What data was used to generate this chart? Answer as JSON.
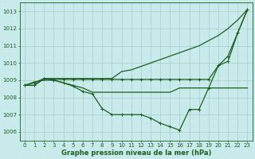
{
  "xlabel": "Graphe pression niveau de la mer (hPa)",
  "background_color": "#c8eaea",
  "grid_color": "#a8cccc",
  "line_color": "#1a5e20",
  "ylim": [
    1005.5,
    1013.5
  ],
  "xlim": [
    -0.5,
    23.5
  ],
  "yticks": [
    1006,
    1007,
    1008,
    1009,
    1010,
    1011,
    1012,
    1013
  ],
  "xticks": [
    0,
    1,
    2,
    3,
    4,
    5,
    6,
    7,
    8,
    9,
    10,
    11,
    12,
    13,
    14,
    15,
    16,
    17,
    18,
    19,
    20,
    21,
    22,
    23
  ],
  "series": [
    {
      "x": [
        0,
        1,
        2,
        3,
        4,
        5,
        6,
        7,
        8,
        9,
        10,
        11,
        12,
        13,
        14,
        15,
        16,
        17,
        18,
        19,
        20,
        21,
        22,
        23
      ],
      "y": [
        1008.7,
        1008.7,
        1009.1,
        1009.1,
        1009.1,
        1009.1,
        1009.1,
        1009.1,
        1009.1,
        1009.1,
        1009.5,
        1009.6,
        1009.8,
        1010.0,
        1010.2,
        1010.4,
        1010.6,
        1010.8,
        1011.0,
        1011.3,
        1011.6,
        1012.0,
        1012.5,
        1013.1
      ],
      "marker": false,
      "lw": 0.9
    },
    {
      "x": [
        0,
        1,
        2,
        3,
        4,
        5,
        6,
        7,
        8,
        9,
        10,
        11,
        12,
        13,
        14,
        15,
        16,
        17,
        18,
        19,
        20,
        21,
        22,
        23
      ],
      "y": [
        1008.7,
        1008.85,
        1009.1,
        1009.05,
        1009.05,
        1009.05,
        1009.05,
        1009.05,
        1009.05,
        1009.05,
        1009.05,
        1009.05,
        1009.05,
        1009.05,
        1009.05,
        1009.05,
        1009.05,
        1009.05,
        1009.05,
        1009.05,
        1009.85,
        1010.4,
        1011.75,
        1013.1
      ],
      "marker": true,
      "lw": 0.9
    },
    {
      "x": [
        0,
        1,
        2,
        3,
        4,
        5,
        6,
        7,
        8,
        9,
        10,
        11,
        12,
        13,
        14,
        15,
        16,
        17,
        18,
        19,
        20,
        21,
        22,
        23
      ],
      "y": [
        1008.7,
        1008.9,
        1009.0,
        1009.0,
        1008.85,
        1008.7,
        1008.55,
        1008.3,
        1008.3,
        1008.3,
        1008.3,
        1008.3,
        1008.3,
        1008.3,
        1008.3,
        1008.3,
        1008.55,
        1008.55,
        1008.55,
        1008.55,
        1008.55,
        1008.55,
        1008.55,
        1008.55
      ],
      "marker": false,
      "lw": 0.9
    },
    {
      "x": [
        0,
        1,
        2,
        3,
        4,
        5,
        6,
        7,
        8,
        9,
        10,
        11,
        12,
        13,
        14,
        15,
        16,
        17,
        18,
        19,
        20,
        21,
        22,
        23
      ],
      "y": [
        1008.7,
        1008.7,
        1009.1,
        1009.0,
        1008.85,
        1008.65,
        1008.35,
        1008.2,
        1007.35,
        1007.0,
        1007.0,
        1007.0,
        1007.0,
        1006.8,
        1006.5,
        1006.3,
        1006.1,
        1007.3,
        1007.3,
        1008.55,
        1009.85,
        1010.1,
        1011.75,
        1013.1
      ],
      "marker": true,
      "lw": 0.9
    }
  ]
}
